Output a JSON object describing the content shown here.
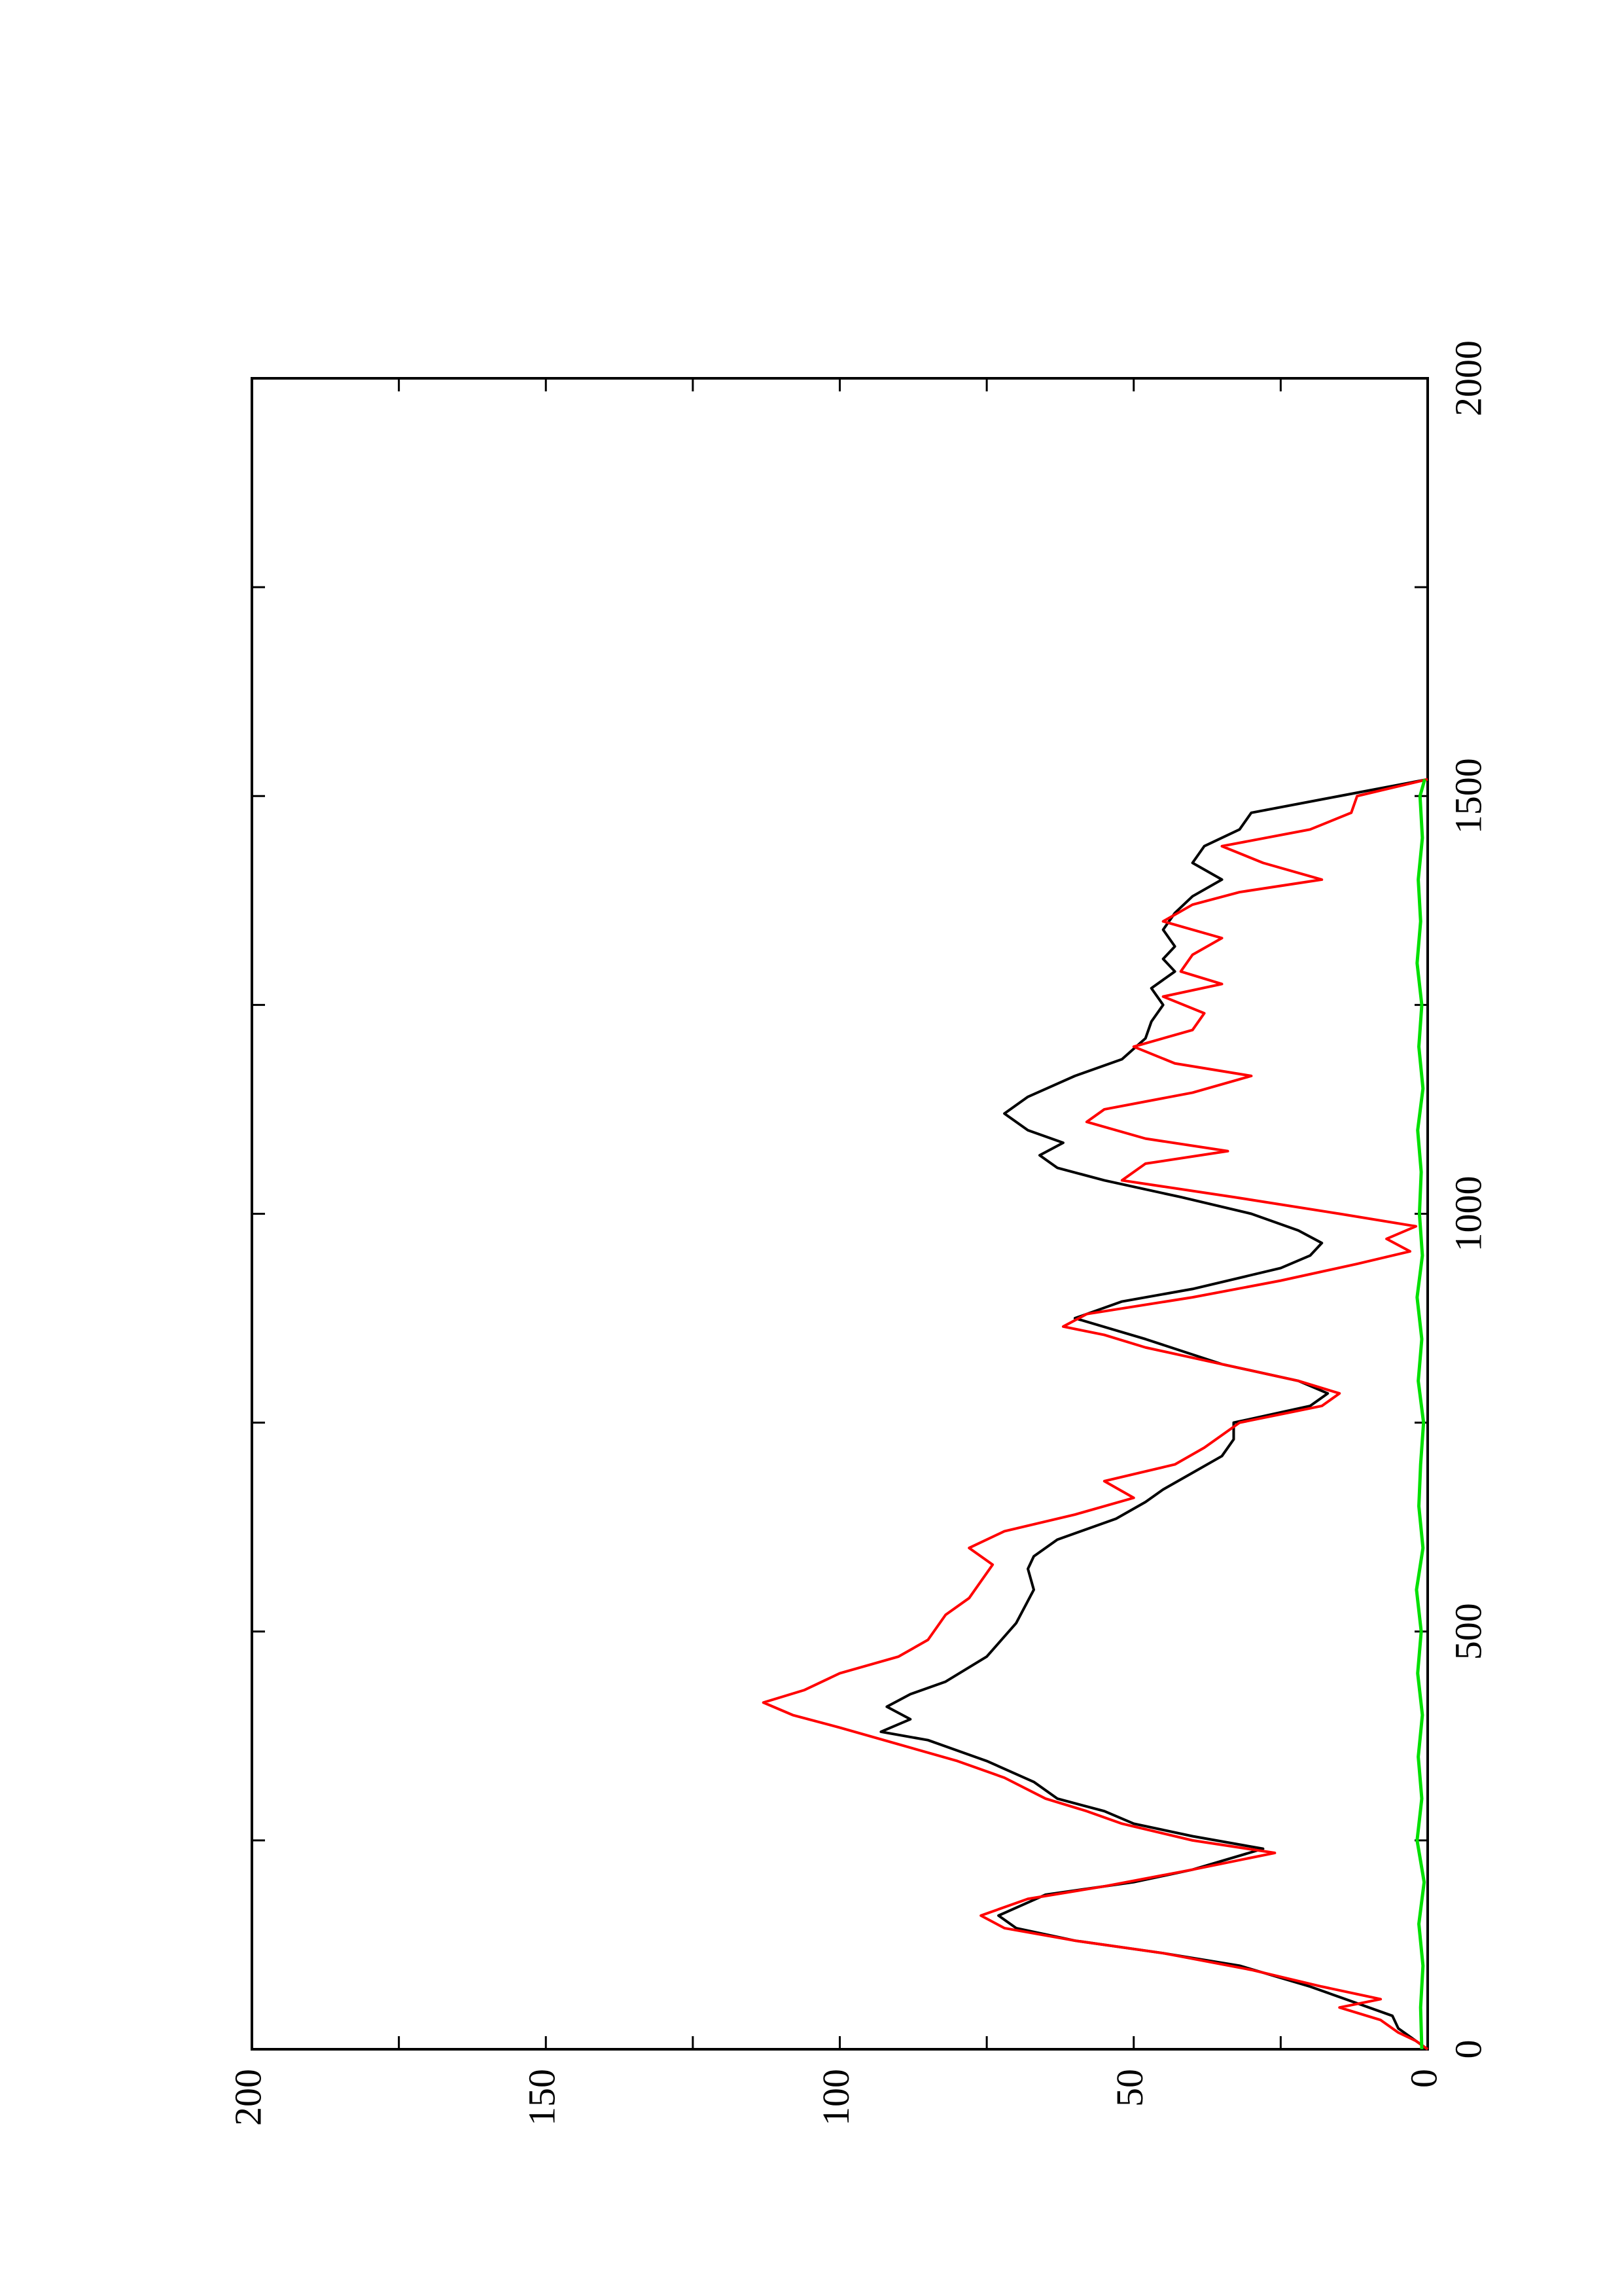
{
  "chart_data": {
    "type": "line",
    "orientation": "rotated-90-ccw",
    "title": "",
    "xlabel": "",
    "ylabel": "",
    "xlim": [
      0,
      2000
    ],
    "ylim": [
      0,
      200
    ],
    "x_ticks": [
      "0",
      "500",
      "1000",
      "1500",
      "2000"
    ],
    "y_ticks": [
      "0",
      "50",
      "100",
      "150",
      "200"
    ],
    "grid": false,
    "legend": "none",
    "series": [
      {
        "color": "#000000",
        "points": [
          [
            0,
            0
          ],
          [
            15,
            3
          ],
          [
            25,
            5
          ],
          [
            40,
            6
          ],
          [
            55,
            12
          ],
          [
            75,
            20
          ],
          [
            100,
            32
          ],
          [
            115,
            45
          ],
          [
            130,
            60
          ],
          [
            145,
            70
          ],
          [
            160,
            73
          ],
          [
            185,
            65
          ],
          [
            200,
            50
          ],
          [
            215,
            40
          ],
          [
            240,
            28
          ],
          [
            255,
            40
          ],
          [
            270,
            50
          ],
          [
            285,
            55
          ],
          [
            300,
            63
          ],
          [
            320,
            67
          ],
          [
            345,
            75
          ],
          [
            370,
            85
          ],
          [
            380,
            93
          ],
          [
            395,
            88
          ],
          [
            410,
            92
          ],
          [
            425,
            88
          ],
          [
            440,
            82
          ],
          [
            470,
            75
          ],
          [
            510,
            70
          ],
          [
            550,
            67
          ],
          [
            575,
            68
          ],
          [
            590,
            67
          ],
          [
            610,
            63
          ],
          [
            635,
            53
          ],
          [
            655,
            48
          ],
          [
            670,
            45
          ],
          [
            690,
            40
          ],
          [
            710,
            35
          ],
          [
            730,
            33
          ],
          [
            750,
            33
          ],
          [
            770,
            20
          ],
          [
            785,
            17
          ],
          [
            800,
            22
          ],
          [
            820,
            35
          ],
          [
            850,
            48
          ],
          [
            875,
            60
          ],
          [
            895,
            52
          ],
          [
            910,
            40
          ],
          [
            935,
            25
          ],
          [
            950,
            20
          ],
          [
            965,
            18
          ],
          [
            980,
            22
          ],
          [
            1000,
            30
          ],
          [
            1020,
            42
          ],
          [
            1040,
            55
          ],
          [
            1055,
            63
          ],
          [
            1070,
            66
          ],
          [
            1085,
            62
          ],
          [
            1100,
            68
          ],
          [
            1120,
            72
          ],
          [
            1140,
            68
          ],
          [
            1165,
            60
          ],
          [
            1185,
            52
          ],
          [
            1210,
            48
          ],
          [
            1230,
            47
          ],
          [
            1250,
            45
          ],
          [
            1270,
            47
          ],
          [
            1290,
            43
          ],
          [
            1305,
            45
          ],
          [
            1320,
            43
          ],
          [
            1340,
            45
          ],
          [
            1360,
            43
          ],
          [
            1380,
            40
          ],
          [
            1400,
            35
          ],
          [
            1420,
            40
          ],
          [
            1440,
            38
          ],
          [
            1460,
            32
          ],
          [
            1480,
            30
          ],
          [
            1500,
            15
          ],
          [
            1520,
            0
          ]
        ]
      },
      {
        "color": "#ff0000",
        "points": [
          [
            0,
            0
          ],
          [
            10,
            2
          ],
          [
            20,
            5
          ],
          [
            35,
            8
          ],
          [
            50,
            15
          ],
          [
            60,
            8
          ],
          [
            75,
            18
          ],
          [
            95,
            30
          ],
          [
            115,
            45
          ],
          [
            130,
            60
          ],
          [
            145,
            72
          ],
          [
            160,
            76
          ],
          [
            180,
            68
          ],
          [
            195,
            55
          ],
          [
            215,
            40
          ],
          [
            235,
            26
          ],
          [
            250,
            40
          ],
          [
            270,
            52
          ],
          [
            285,
            58
          ],
          [
            300,
            65
          ],
          [
            325,
            72
          ],
          [
            345,
            80
          ],
          [
            365,
            90
          ],
          [
            385,
            100
          ],
          [
            400,
            108
          ],
          [
            415,
            113
          ],
          [
            430,
            106
          ],
          [
            450,
            100
          ],
          [
            470,
            90
          ],
          [
            490,
            85
          ],
          [
            520,
            82
          ],
          [
            540,
            78
          ],
          [
            560,
            76
          ],
          [
            580,
            74
          ],
          [
            600,
            78
          ],
          [
            620,
            72
          ],
          [
            640,
            60
          ],
          [
            660,
            50
          ],
          [
            680,
            55
          ],
          [
            700,
            43
          ],
          [
            720,
            38
          ],
          [
            750,
            32
          ],
          [
            770,
            18
          ],
          [
            785,
            15
          ],
          [
            800,
            22
          ],
          [
            820,
            35
          ],
          [
            840,
            48
          ],
          [
            855,
            55
          ],
          [
            865,
            62
          ],
          [
            880,
            58
          ],
          [
            900,
            40
          ],
          [
            920,
            25
          ],
          [
            940,
            12
          ],
          [
            955,
            3
          ],
          [
            970,
            7
          ],
          [
            985,
            2
          ],
          [
            1000,
            15
          ],
          [
            1020,
            33
          ],
          [
            1040,
            52
          ],
          [
            1060,
            48
          ],
          [
            1075,
            34
          ],
          [
            1090,
            48
          ],
          [
            1110,
            58
          ],
          [
            1125,
            55
          ],
          [
            1145,
            40
          ],
          [
            1165,
            30
          ],
          [
            1180,
            43
          ],
          [
            1200,
            50
          ],
          [
            1220,
            40
          ],
          [
            1240,
            38
          ],
          [
            1260,
            45
          ],
          [
            1275,
            35
          ],
          [
            1290,
            42
          ],
          [
            1310,
            40
          ],
          [
            1330,
            35
          ],
          [
            1350,
            45
          ],
          [
            1370,
            40
          ],
          [
            1385,
            32
          ],
          [
            1400,
            18
          ],
          [
            1420,
            28
          ],
          [
            1440,
            35
          ],
          [
            1460,
            20
          ],
          [
            1480,
            13
          ],
          [
            1500,
            12
          ],
          [
            1520,
            0
          ]
        ]
      },
      {
        "color": "#00e000",
        "points": [
          [
            0,
            1
          ],
          [
            50,
            1.2
          ],
          [
            100,
            0.8
          ],
          [
            150,
            1.5
          ],
          [
            200,
            0.6
          ],
          [
            250,
            1.8
          ],
          [
            300,
            1.0
          ],
          [
            350,
            1.6
          ],
          [
            400,
            0.9
          ],
          [
            450,
            1.7
          ],
          [
            500,
            1.1
          ],
          [
            550,
            1.9
          ],
          [
            600,
            0.8
          ],
          [
            650,
            1.5
          ],
          [
            700,
            1.2
          ],
          [
            750,
            0.7
          ],
          [
            800,
            1.6
          ],
          [
            850,
            1.0
          ],
          [
            900,
            1.8
          ],
          [
            950,
            0.9
          ],
          [
            1000,
            1.4
          ],
          [
            1050,
            1.1
          ],
          [
            1100,
            1.7
          ],
          [
            1150,
            0.8
          ],
          [
            1200,
            1.5
          ],
          [
            1250,
            1.0
          ],
          [
            1300,
            1.8
          ],
          [
            1350,
            1.2
          ],
          [
            1400,
            1.6
          ],
          [
            1450,
            0.9
          ],
          [
            1500,
            1.3
          ],
          [
            1520,
            0.5
          ]
        ]
      }
    ]
  }
}
